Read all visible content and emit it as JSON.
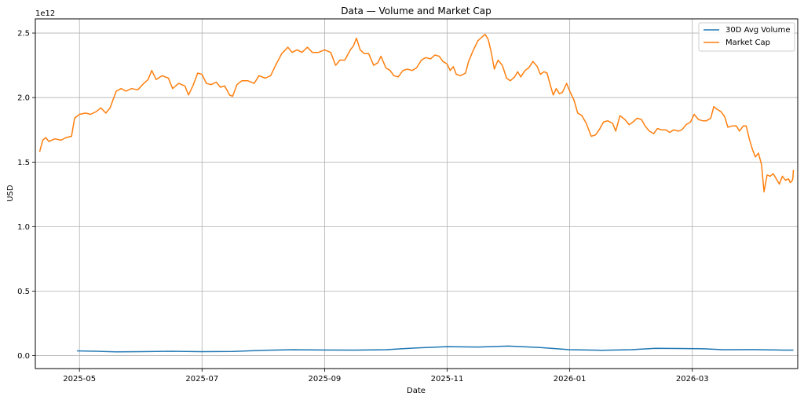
{
  "chart_data": {
    "type": "line",
    "title": "Data — Volume and Market Cap",
    "xlabel": "Date",
    "ylabel": "USD",
    "y_offset_label": "1e12",
    "ylim": [
      -0.1,
      2.61
    ],
    "xlim_months": [
      -0.72,
      11.72
    ],
    "x_ticks": [
      {
        "label": "2025-05",
        "month": 0
      },
      {
        "label": "2025-07",
        "month": 2
      },
      {
        "label": "2025-09",
        "month": 4
      },
      {
        "label": "2025-11",
        "month": 6
      },
      {
        "label": "2026-01",
        "month": 8
      },
      {
        "label": "2026-03",
        "month": 10
      }
    ],
    "y_ticks": [
      {
        "label": "0.0",
        "value": 0.0
      },
      {
        "label": "0.5",
        "value": 0.5
      },
      {
        "label": "1.0",
        "value": 1.0
      },
      {
        "label": "1.5",
        "value": 1.5
      },
      {
        "label": "2.0",
        "value": 2.0
      },
      {
        "label": "2.5",
        "value": 2.5
      }
    ],
    "grid": true,
    "legend": "top-right",
    "series": [
      {
        "name": "30D Avg Volume",
        "color": "#1f77b4",
        "points": [
          [
            -0.04,
            0.037
          ],
          [
            0.3,
            0.034
          ],
          [
            0.6,
            0.03
          ],
          [
            1.0,
            0.031
          ],
          [
            1.5,
            0.034
          ],
          [
            2.0,
            0.031
          ],
          [
            2.5,
            0.033
          ],
          [
            3.0,
            0.042
          ],
          [
            3.5,
            0.046
          ],
          [
            4.0,
            0.044
          ],
          [
            4.5,
            0.043
          ],
          [
            5.0,
            0.046
          ],
          [
            5.5,
            0.06
          ],
          [
            6.0,
            0.07
          ],
          [
            6.5,
            0.067
          ],
          [
            7.0,
            0.074
          ],
          [
            7.5,
            0.064
          ],
          [
            8.0,
            0.046
          ],
          [
            8.5,
            0.042
          ],
          [
            9.0,
            0.046
          ],
          [
            9.4,
            0.057
          ],
          [
            9.8,
            0.055
          ],
          [
            10.2,
            0.053
          ],
          [
            10.5,
            0.046
          ],
          [
            11.0,
            0.047
          ],
          [
            11.5,
            0.043
          ],
          [
            11.65,
            0.043
          ]
        ]
      },
      {
        "name": "Market Cap",
        "color": "#ff7f0e",
        "points": [
          [
            -0.65,
            1.58
          ],
          [
            -0.6,
            1.67
          ],
          [
            -0.55,
            1.69
          ],
          [
            -0.5,
            1.66
          ],
          [
            -0.4,
            1.68
          ],
          [
            -0.3,
            1.67
          ],
          [
            -0.22,
            1.69
          ],
          [
            -0.13,
            1.7
          ],
          [
            -0.08,
            1.84
          ],
          [
            0.0,
            1.87
          ],
          [
            0.1,
            1.88
          ],
          [
            0.18,
            1.87
          ],
          [
            0.27,
            1.89
          ],
          [
            0.35,
            1.92
          ],
          [
            0.43,
            1.88
          ],
          [
            0.5,
            1.92
          ],
          [
            0.6,
            2.05
          ],
          [
            0.68,
            2.07
          ],
          [
            0.76,
            2.05
          ],
          [
            0.85,
            2.07
          ],
          [
            0.95,
            2.06
          ],
          [
            1.05,
            2.11
          ],
          [
            1.12,
            2.14
          ],
          [
            1.18,
            2.21
          ],
          [
            1.25,
            2.14
          ],
          [
            1.35,
            2.17
          ],
          [
            1.45,
            2.15
          ],
          [
            1.52,
            2.07
          ],
          [
            1.62,
            2.11
          ],
          [
            1.72,
            2.09
          ],
          [
            1.78,
            2.02
          ],
          [
            1.85,
            2.09
          ],
          [
            1.93,
            2.19
          ],
          [
            2.0,
            2.18
          ],
          [
            2.07,
            2.11
          ],
          [
            2.15,
            2.1
          ],
          [
            2.23,
            2.12
          ],
          [
            2.3,
            2.08
          ],
          [
            2.37,
            2.09
          ],
          [
            2.45,
            2.02
          ],
          [
            2.5,
            2.01
          ],
          [
            2.57,
            2.1
          ],
          [
            2.65,
            2.13
          ],
          [
            2.75,
            2.13
          ],
          [
            2.85,
            2.11
          ],
          [
            2.93,
            2.17
          ],
          [
            3.03,
            2.15
          ],
          [
            3.12,
            2.17
          ],
          [
            3.2,
            2.25
          ],
          [
            3.3,
            2.34
          ],
          [
            3.4,
            2.39
          ],
          [
            3.47,
            2.35
          ],
          [
            3.55,
            2.37
          ],
          [
            3.63,
            2.35
          ],
          [
            3.72,
            2.39
          ],
          [
            3.8,
            2.35
          ],
          [
            3.9,
            2.35
          ],
          [
            4.0,
            2.37
          ],
          [
            4.1,
            2.35
          ],
          [
            4.18,
            2.25
          ],
          [
            4.25,
            2.29
          ],
          [
            4.33,
            2.29
          ],
          [
            4.42,
            2.37
          ],
          [
            4.47,
            2.4
          ],
          [
            4.52,
            2.46
          ],
          [
            4.58,
            2.37
          ],
          [
            4.65,
            2.34
          ],
          [
            4.72,
            2.34
          ],
          [
            4.8,
            2.25
          ],
          [
            4.87,
            2.27
          ],
          [
            4.92,
            2.32
          ],
          [
            5.0,
            2.23
          ],
          [
            5.07,
            2.21
          ],
          [
            5.13,
            2.17
          ],
          [
            5.2,
            2.16
          ],
          [
            5.28,
            2.21
          ],
          [
            5.35,
            2.22
          ],
          [
            5.43,
            2.21
          ],
          [
            5.5,
            2.23
          ],
          [
            5.58,
            2.29
          ],
          [
            5.65,
            2.31
          ],
          [
            5.73,
            2.3
          ],
          [
            5.8,
            2.33
          ],
          [
            5.87,
            2.32
          ],
          [
            5.93,
            2.28
          ],
          [
            6.0,
            2.26
          ],
          [
            6.05,
            2.21
          ],
          [
            6.1,
            2.24
          ],
          [
            6.15,
            2.18
          ],
          [
            6.22,
            2.17
          ],
          [
            6.3,
            2.19
          ],
          [
            6.35,
            2.28
          ],
          [
            6.42,
            2.36
          ],
          [
            6.5,
            2.44
          ],
          [
            6.57,
            2.47
          ],
          [
            6.62,
            2.49
          ],
          [
            6.67,
            2.45
          ],
          [
            6.72,
            2.35
          ],
          [
            6.77,
            2.22
          ],
          [
            6.83,
            2.29
          ],
          [
            6.9,
            2.25
          ],
          [
            6.97,
            2.15
          ],
          [
            7.03,
            2.13
          ],
          [
            7.1,
            2.16
          ],
          [
            7.15,
            2.2
          ],
          [
            7.2,
            2.16
          ],
          [
            7.27,
            2.21
          ],
          [
            7.33,
            2.23
          ],
          [
            7.4,
            2.28
          ],
          [
            7.47,
            2.24
          ],
          [
            7.52,
            2.18
          ],
          [
            7.58,
            2.2
          ],
          [
            7.63,
            2.19
          ],
          [
            7.68,
            2.1
          ],
          [
            7.73,
            2.02
          ],
          [
            7.78,
            2.07
          ],
          [
            7.83,
            2.03
          ],
          [
            7.88,
            2.04
          ],
          [
            7.95,
            2.11
          ],
          [
            8.0,
            2.05
          ],
          [
            8.07,
            1.98
          ],
          [
            8.13,
            1.88
          ],
          [
            8.2,
            1.86
          ],
          [
            8.27,
            1.8
          ],
          [
            8.35,
            1.7
          ],
          [
            8.42,
            1.71
          ],
          [
            8.48,
            1.75
          ],
          [
            8.55,
            1.81
          ],
          [
            8.62,
            1.82
          ],
          [
            8.7,
            1.8
          ],
          [
            8.75,
            1.74
          ],
          [
            8.82,
            1.86
          ],
          [
            8.9,
            1.83
          ],
          [
            8.97,
            1.79
          ],
          [
            9.03,
            1.81
          ],
          [
            9.1,
            1.84
          ],
          [
            9.17,
            1.83
          ],
          [
            9.23,
            1.78
          ],
          [
            9.3,
            1.74
          ],
          [
            9.37,
            1.72
          ],
          [
            9.43,
            1.76
          ],
          [
            9.5,
            1.75
          ],
          [
            9.57,
            1.75
          ],
          [
            9.63,
            1.73
          ],
          [
            9.7,
            1.75
          ],
          [
            9.77,
            1.74
          ],
          [
            9.83,
            1.75
          ],
          [
            9.9,
            1.79
          ],
          [
            9.97,
            1.81
          ],
          [
            10.03,
            1.87
          ],
          [
            10.1,
            1.83
          ],
          [
            10.17,
            1.82
          ],
          [
            10.23,
            1.82
          ],
          [
            10.3,
            1.84
          ],
          [
            10.35,
            1.93
          ],
          [
            10.4,
            1.91
          ],
          [
            10.47,
            1.89
          ],
          [
            10.53,
            1.85
          ],
          [
            10.58,
            1.77
          ],
          [
            10.65,
            1.78
          ],
          [
            10.72,
            1.78
          ],
          [
            10.77,
            1.74
          ],
          [
            10.83,
            1.78
          ],
          [
            10.88,
            1.78
          ],
          [
            10.93,
            1.68
          ],
          [
            10.98,
            1.6
          ],
          [
            11.03,
            1.54
          ],
          [
            11.08,
            1.57
          ],
          [
            11.13,
            1.48
          ],
          [
            11.17,
            1.27
          ],
          [
            11.22,
            1.4
          ],
          [
            11.27,
            1.39
          ],
          [
            11.32,
            1.41
          ],
          [
            11.37,
            1.37
          ],
          [
            11.42,
            1.33
          ],
          [
            11.47,
            1.39
          ],
          [
            11.52,
            1.36
          ],
          [
            11.57,
            1.37
          ],
          [
            11.6,
            1.34
          ],
          [
            11.62,
            1.35
          ],
          [
            11.63,
            1.36
          ],
          [
            11.64,
            1.37
          ],
          [
            11.65,
            1.44
          ]
        ]
      }
    ]
  }
}
